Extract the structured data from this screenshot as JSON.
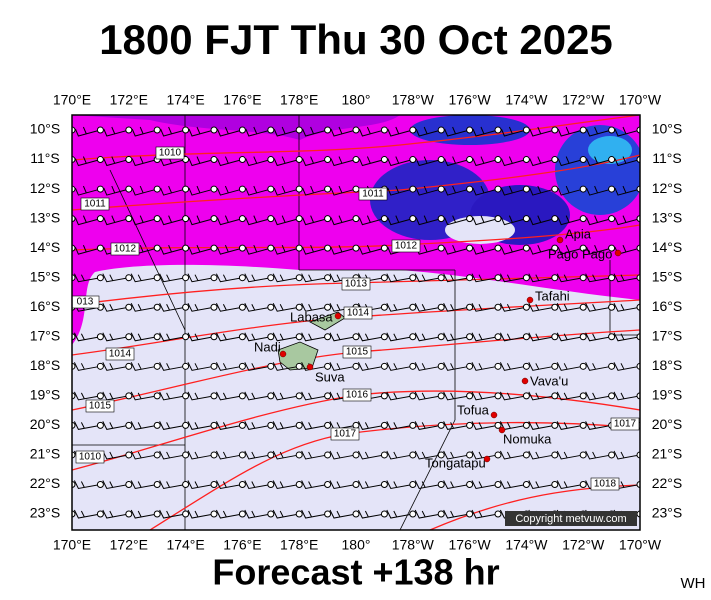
{
  "header": {
    "title": "1800 FJT Thu 30 Oct 2025"
  },
  "footer": {
    "forecast": "Forecast +138 hr",
    "corner": "WH"
  },
  "map": {
    "copyright": "Copyright metvuw.com",
    "lon_labels": [
      "170°E",
      "172°E",
      "174°E",
      "176°E",
      "178°E",
      "180°",
      "178°W",
      "176°W",
      "174°W",
      "172°W",
      "170°W"
    ],
    "lat_labels": [
      "10°S",
      "11°S",
      "12°S",
      "13°S",
      "14°S",
      "15°S",
      "16°S",
      "17°S",
      "18°S",
      "19°S",
      "20°S",
      "21°S",
      "22°S",
      "23°S"
    ],
    "places": [
      "Apia",
      "Pago Pago",
      "Tafahi",
      "Labasa",
      "Nadi",
      "Suva",
      "Vava'u",
      "Tofua",
      "Nomuka",
      "Tongatapu"
    ],
    "isobar_labels": [
      "1010",
      "1011",
      "1011",
      "1012",
      "1012",
      "013",
      "1013",
      "1014",
      "1014",
      "1015",
      "1015",
      "1016",
      "1017",
      "1017",
      "1018",
      "1010"
    ]
  }
}
